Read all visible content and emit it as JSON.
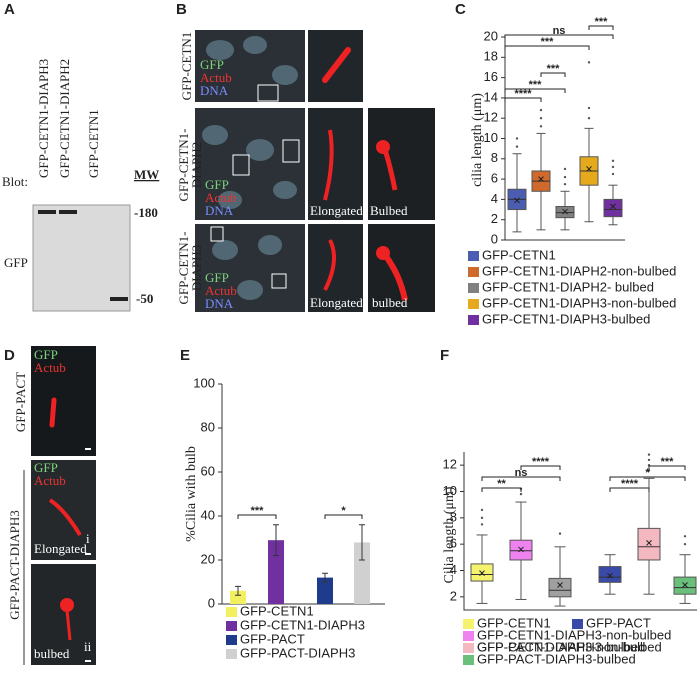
{
  "panels": {
    "A": {
      "letter": "A",
      "lanes": [
        "GFP-CETN1-DIAPH3",
        "GFP-CETN1-DIAPH2",
        "GFP-CETN1"
      ],
      "blot": "Blot:",
      "mw": "MW",
      "markers": [
        "-180",
        "-50"
      ],
      "antibody": "GFP"
    },
    "B": {
      "letter": "B",
      "rows": [
        {
          "name": [
            "GFP-CETN1"
          ],
          "stains": [
            "GFP",
            "Actub",
            "DNA"
          ]
        },
        {
          "name": [
            "GFP-CETN1-",
            "DIAPH2"
          ],
          "stains": [
            "GFP",
            "Actub",
            "DNA"
          ],
          "insets": [
            "Elongated",
            "Bulbed"
          ]
        },
        {
          "name": [
            "GFP-CETN1-",
            "DIAPH3"
          ],
          "stains": [
            "GFP",
            "Actub",
            "DNA"
          ],
          "insets": [
            "Elongated",
            "bulbed"
          ]
        }
      ]
    },
    "C": {
      "letter": "C"
    },
    "D": {
      "letter": "D",
      "rows": [
        "GFP-PACT",
        "GFP-PACT-DIAPH3"
      ],
      "stains": [
        "GFP",
        "Actub"
      ],
      "insets": [
        "Elongated",
        "i",
        "bulbed",
        "ii"
      ]
    },
    "E": {
      "letter": "E"
    },
    "F": {
      "letter": "F"
    }
  },
  "chart_data": [
    {
      "type": "box",
      "y_label": "cilia length (μm)",
      "ylim": [
        0,
        20
      ],
      "yticks": [
        0,
        2,
        4,
        6,
        8,
        10,
        12,
        14,
        16,
        18,
        20
      ],
      "series": [
        {
          "name": "GFP-CETN1",
          "color": "#4a5db0",
          "min": 0.8,
          "q1": 3,
          "median": 4,
          "q3": 5,
          "max": 8.5,
          "mean": 3.9,
          "outliers": [
            9.2,
            10
          ]
        },
        {
          "name": "GFP-CETN1-DIAPH2-non-bulbed",
          "color": "#d0692c",
          "min": 1,
          "q1": 4.8,
          "median": 5.8,
          "q3": 6.8,
          "max": 10.5,
          "mean": 6,
          "outliers": [
            11.2,
            12,
            12.8
          ]
        },
        {
          "name": "GFP-CETN1-DIAPH2- bulbed",
          "color": "#808080",
          "min": 1,
          "q1": 2.2,
          "median": 2.7,
          "q3": 3.3,
          "max": 4.8,
          "mean": 2.8,
          "outliers": [
            5.5,
            6.2,
            7
          ]
        },
        {
          "name": "GFP-CETN1-DIAPH3-non-bulbed",
          "color": "#e5a91e",
          "min": 1.8,
          "q1": 5.4,
          "median": 6.8,
          "q3": 8.2,
          "max": 11,
          "mean": 7,
          "outliers": [
            12,
            13,
            17.5
          ]
        },
        {
          "name": "GFP-CETN1-DIAPH3-bulbed",
          "color": "#7030a0",
          "min": 1.5,
          "q1": 2.3,
          "median": 3,
          "q3": 4,
          "max": 5.4,
          "mean": 3.3,
          "outliers": [
            6.5,
            7.2,
            7.8
          ]
        }
      ],
      "comparisons": [
        {
          "pair": [
            0,
            1
          ],
          "label": "****"
        },
        {
          "pair": [
            0,
            2
          ],
          "label": "***"
        },
        {
          "pair": [
            1,
            2
          ],
          "label": "***"
        },
        {
          "pair": [
            0,
            3
          ],
          "label": "***"
        },
        {
          "pair": [
            0,
            4
          ],
          "label": "ns"
        },
        {
          "pair": [
            3,
            4
          ],
          "label": "***"
        }
      ]
    },
    {
      "type": "bar",
      "y_label": "%Cilia with bulb",
      "ylim": [
        0,
        100
      ],
      "yticks": [
        0,
        20,
        40,
        60,
        80,
        100
      ],
      "categories": [
        "GFP-CETN1",
        "GFP-CETN1-DIAPH3",
        "GFP-PACT",
        "GFP-PACT-DIAPH3"
      ],
      "values": [
        6,
        29,
        12,
        28
      ],
      "errors": [
        2,
        7,
        2,
        8
      ],
      "colors": [
        "#f2f060",
        "#7030a0",
        "#1f3c8c",
        "#d0d0d0"
      ],
      "comparisons": [
        {
          "pair": [
            0,
            1
          ],
          "label": "***"
        },
        {
          "pair": [
            2,
            3
          ],
          "label": "*"
        }
      ]
    },
    {
      "type": "box",
      "y_label": "Cilia length (μm)",
      "ylim": [
        1,
        13
      ],
      "yticks": [
        2,
        4,
        6,
        8,
        10,
        12
      ],
      "series": [
        {
          "name": "GFP-CETN1",
          "color": "#f5f26e",
          "min": 1.5,
          "q1": 3.2,
          "median": 3.7,
          "q3": 4.5,
          "max": 6.7,
          "mean": 3.8,
          "outliers": [
            7.5,
            8,
            8.6
          ]
        },
        {
          "name": "GFP-CETN1-DIAPH3-non-bulbed",
          "color": "#ee82ee",
          "min": 1.8,
          "q1": 4.8,
          "median": 5.5,
          "q3": 6.3,
          "max": 9.2,
          "mean": 5.6,
          "outliers": [
            9.8,
            10.2
          ]
        },
        {
          "name": "GFP-CETN1-DIAPH3-bulbed",
          "color": "#a0a0a0",
          "min": 1.3,
          "q1": 2,
          "median": 2.5,
          "q3": 3.4,
          "max": 5.8,
          "mean": 2.9,
          "outliers": [
            6.8
          ]
        },
        {
          "name": "GFP-PACT",
          "color": "#3a4aa8",
          "min": 2.2,
          "q1": 3.1,
          "median": 3.5,
          "q3": 4.3,
          "max": 5.2,
          "mean": 3.6,
          "outliers": []
        },
        {
          "name": "GFP-PACT-DIAPH3-non-bulbed",
          "color": "#f4b8c0",
          "min": 2.2,
          "q1": 4.8,
          "median": 5.8,
          "q3": 7.2,
          "max": 11,
          "mean": 6.1,
          "outliers": [
            11.6,
            12,
            12.4,
            12.8
          ]
        },
        {
          "name": "GFP-PACT-DIAPH3-bulbed",
          "color": "#6abf7b",
          "min": 1.5,
          "q1": 2.2,
          "median": 2.7,
          "q3": 3.5,
          "max": 5.2,
          "mean": 2.9,
          "outliers": [
            6,
            6.6
          ]
        }
      ],
      "comparisons": [
        {
          "pair": [
            0,
            1
          ],
          "label": "**"
        },
        {
          "pair": [
            0,
            2
          ],
          "label": "ns"
        },
        {
          "pair": [
            1,
            2
          ],
          "label": "****"
        },
        {
          "pair": [
            3,
            4
          ],
          "label": "****"
        },
        {
          "pair": [
            3,
            5
          ],
          "label": "*"
        },
        {
          "pair": [
            4,
            5
          ],
          "label": "***"
        }
      ]
    }
  ]
}
